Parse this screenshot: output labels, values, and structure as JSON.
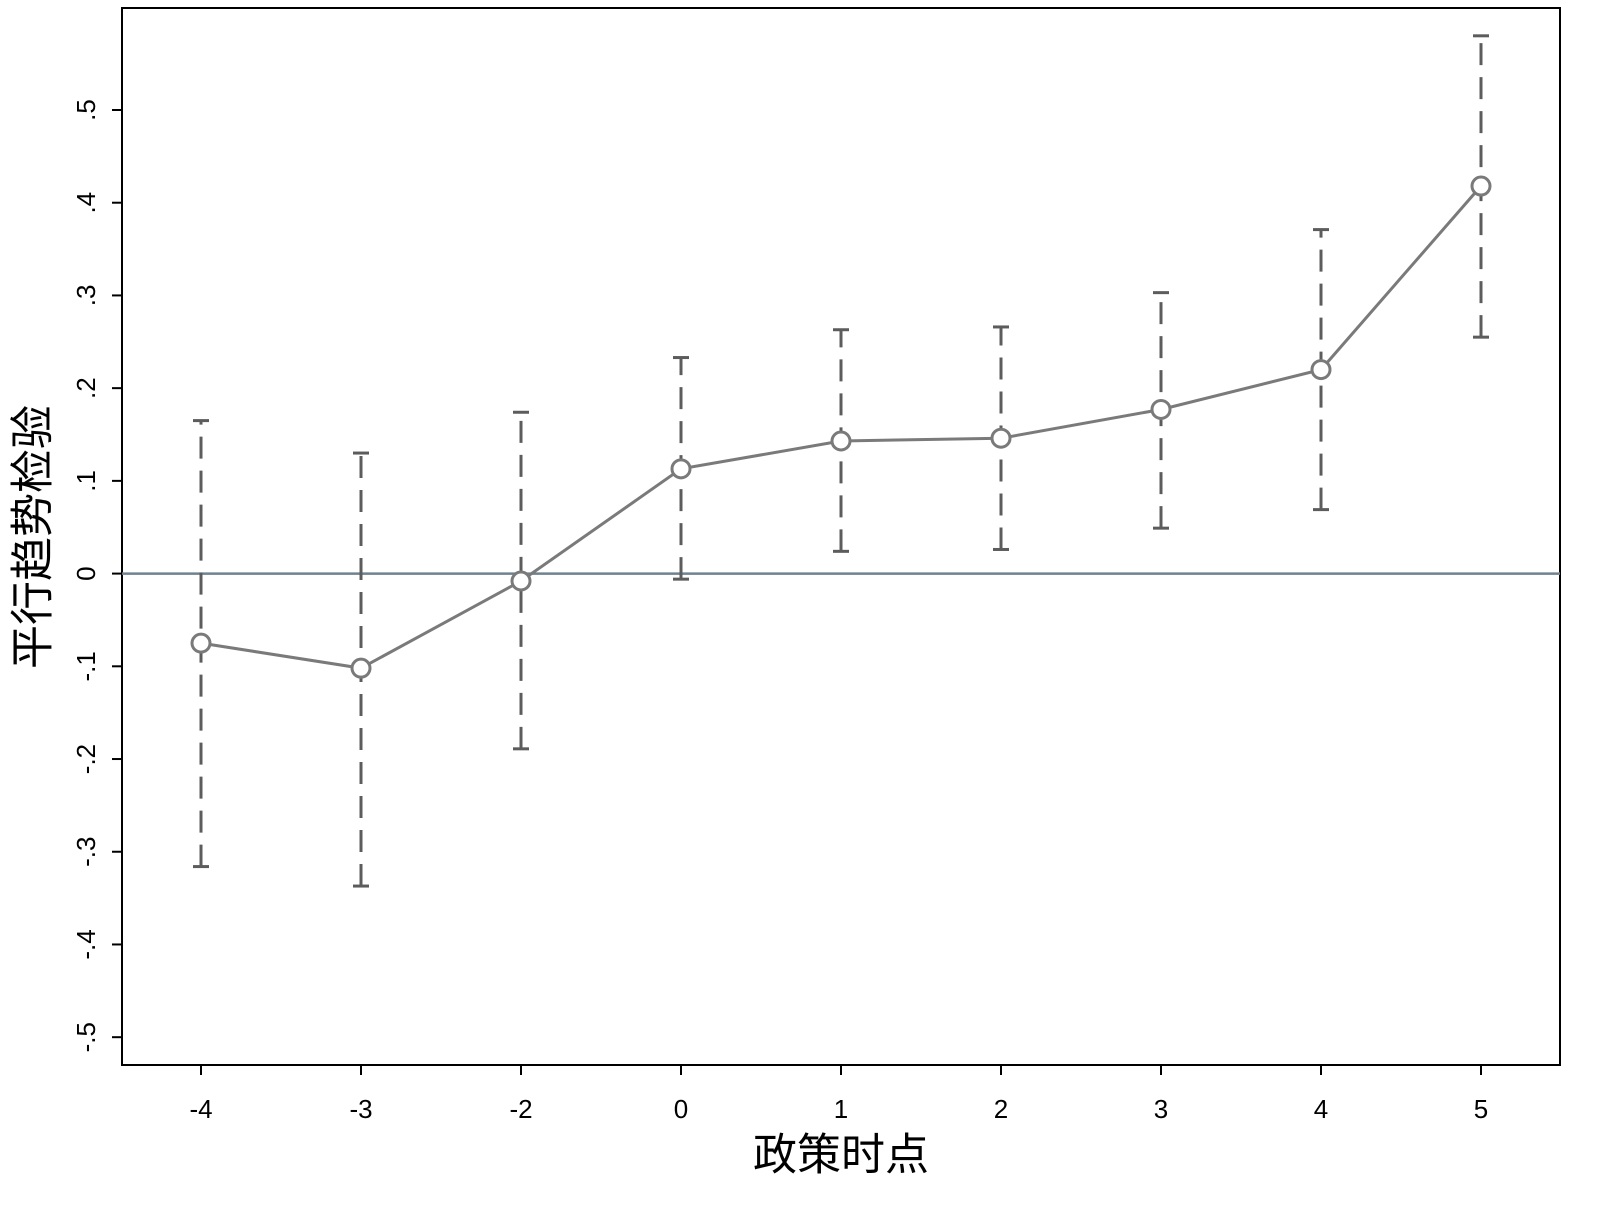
{
  "chart_data": {
    "type": "line",
    "x_label": "政策时点",
    "y_label": "平行趋势检验",
    "categories": [
      "-4",
      "-3",
      "-2",
      "0",
      "1",
      "2",
      "3",
      "4",
      "5"
    ],
    "values": [
      -0.075,
      -0.102,
      -0.008,
      0.113,
      0.143,
      0.146,
      0.177,
      0.22,
      0.418
    ],
    "lower": [
      -0.316,
      -0.337,
      -0.189,
      -0.006,
      0.024,
      0.026,
      0.049,
      0.069,
      0.255
    ],
    "upper": [
      0.165,
      0.13,
      0.174,
      0.233,
      0.263,
      0.266,
      0.303,
      0.371,
      0.58
    ],
    "color": "#7a7a7a",
    "errorbar_color": "#5c5c5c",
    "reference_line": 0,
    "reference_color": "#6f8290",
    "ylim": [
      -0.53,
      0.61
    ],
    "yticks": [
      {
        "value": -0.5,
        "label": "-.5"
      },
      {
        "value": -0.4,
        "label": "-.4"
      },
      {
        "value": -0.3,
        "label": "-.3"
      },
      {
        "value": -0.2,
        "label": "-.2"
      },
      {
        "value": -0.1,
        "label": "-.1"
      },
      0,
      {
        "value": 0.1,
        "label": ".1"
      },
      {
        "value": 0.2,
        "label": ".2"
      },
      {
        "value": 0.3,
        "label": ".3"
      },
      {
        "value": 0.4,
        "label": ".4"
      },
      {
        "value": 0.5,
        "label": ".5"
      }
    ]
  }
}
